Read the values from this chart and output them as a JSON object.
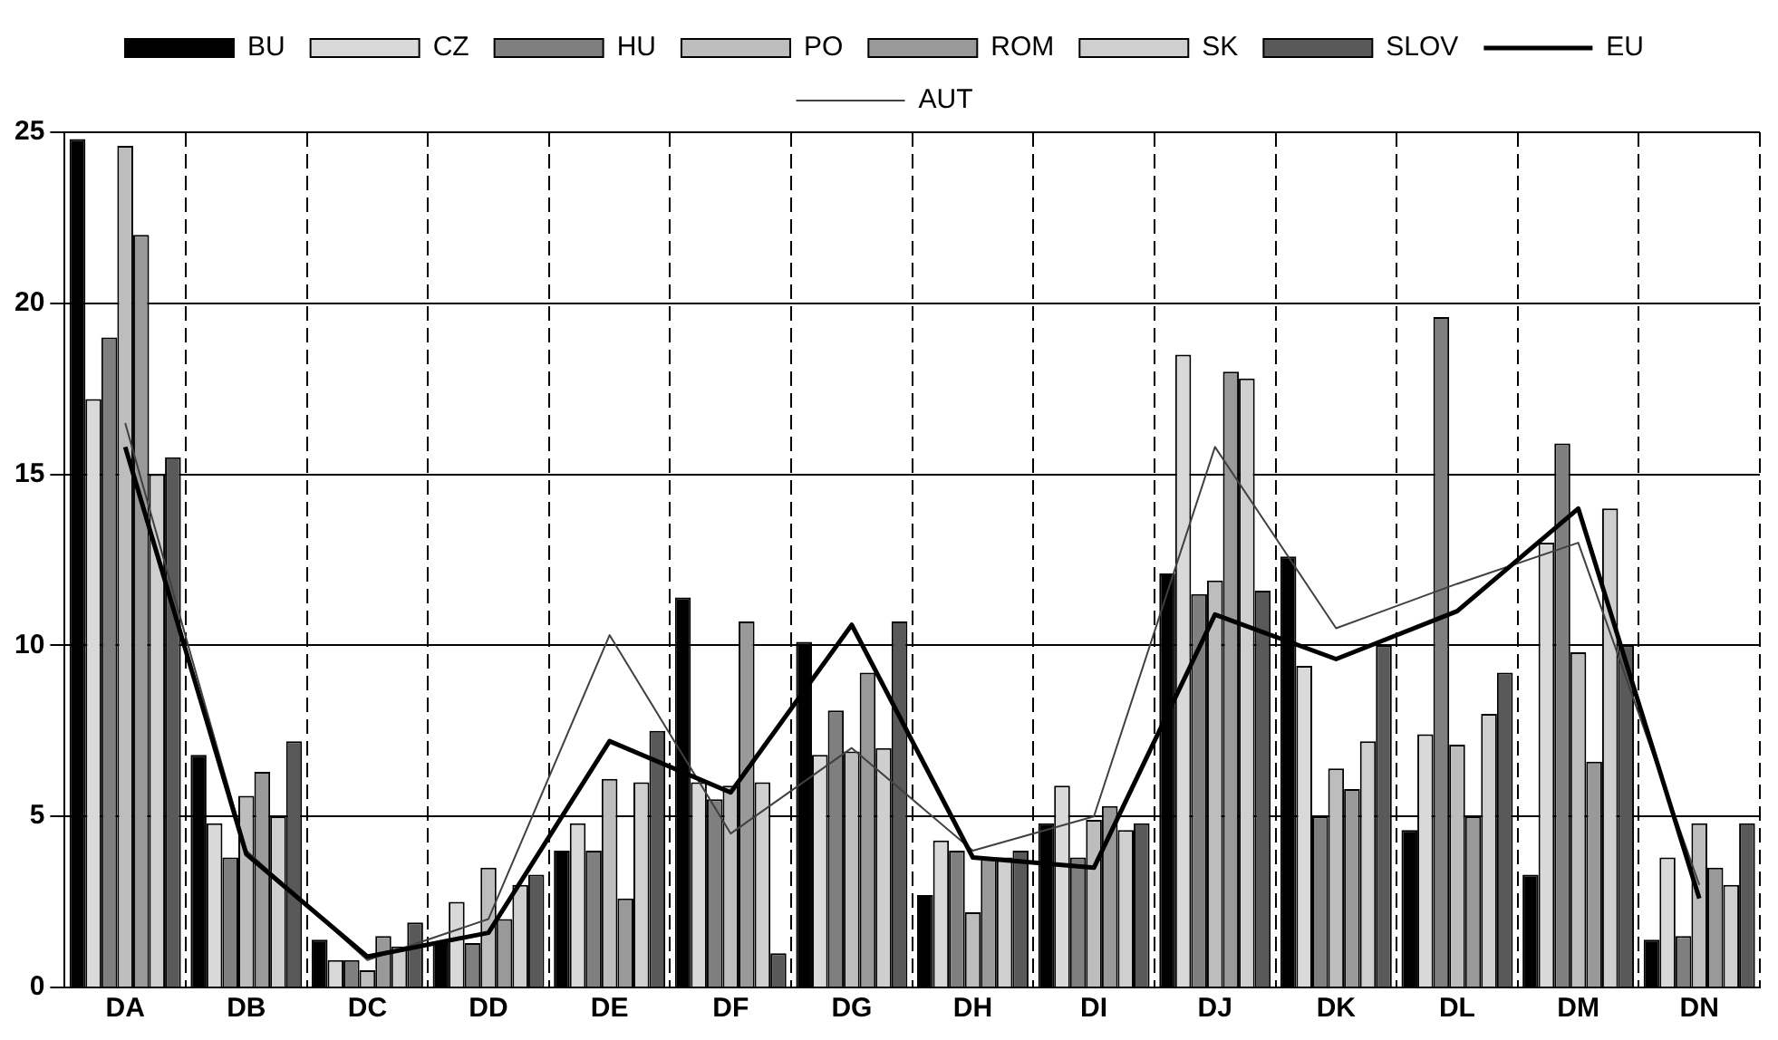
{
  "chart_data": {
    "type": "bar",
    "categories": [
      "DA",
      "DB",
      "DC",
      "DD",
      "DE",
      "DF",
      "DG",
      "DH",
      "DI",
      "DJ",
      "DK",
      "DL",
      "DM",
      "DN"
    ],
    "series": [
      {
        "name": "BU",
        "color": "#000000",
        "values": [
          24.8,
          6.8,
          1.4,
          1.3,
          4,
          11.4,
          10.1,
          2.7,
          4.8,
          12.1,
          12.6,
          4.6,
          3.3,
          1.4
        ]
      },
      {
        "name": "CZ",
        "color": "#d9d9d9",
        "values": [
          17.2,
          4.8,
          0.8,
          2.5,
          4.8,
          6,
          6.8,
          4.3,
          5.9,
          18.5,
          9.4,
          7.4,
          13,
          3.8
        ]
      },
      {
        "name": "HU",
        "color": "#7f7f7f",
        "values": [
          19,
          3.8,
          0.8,
          1.3,
          4,
          5.5,
          8.1,
          4,
          3.8,
          11.5,
          5,
          19.6,
          15.9,
          1.5
        ]
      },
      {
        "name": "PO",
        "color": "#bdbdbd",
        "values": [
          24.6,
          5.6,
          0.5,
          3.5,
          6.1,
          5.9,
          6.9,
          2.2,
          4.9,
          11.9,
          6.4,
          7.1,
          9.8,
          4.8
        ]
      },
      {
        "name": "ROM",
        "color": "#999999",
        "values": [
          22,
          6.3,
          1.5,
          2,
          2.6,
          10.7,
          9.2,
          3.8,
          5.3,
          18,
          5.8,
          5,
          6.6,
          3.5
        ]
      },
      {
        "name": "SK",
        "color": "#cfcfcf",
        "values": [
          15,
          5,
          1.2,
          3,
          6,
          6,
          7,
          3.8,
          4.6,
          17.8,
          7.2,
          8,
          14,
          3
        ]
      },
      {
        "name": "SLOV",
        "color": "#595959",
        "values": [
          15.5,
          7.2,
          1.9,
          3.3,
          7.5,
          1,
          10.7,
          4,
          4.8,
          11.6,
          10,
          9.2,
          10,
          4.8
        ]
      },
      {
        "name": "EU",
        "type": "line",
        "color": "#000000",
        "values": [
          15.8,
          3.9,
          0.9,
          1.6,
          7.2,
          5.7,
          10.6,
          3.8,
          3.5,
          10.9,
          9.6,
          11,
          14,
          2.6
        ]
      },
      {
        "name": "AUT",
        "type": "line",
        "color": "#404040",
        "values": [
          16.5,
          4,
          0.8,
          2,
          10.3,
          4.5,
          7,
          4,
          5,
          15.8,
          10.5,
          11.8,
          13,
          3
        ]
      }
    ],
    "ylim": [
      0,
      25
    ],
    "yticks": [
      0,
      5,
      10,
      15,
      20,
      25
    ],
    "grid": true,
    "legend": "top",
    "marker": "none"
  }
}
